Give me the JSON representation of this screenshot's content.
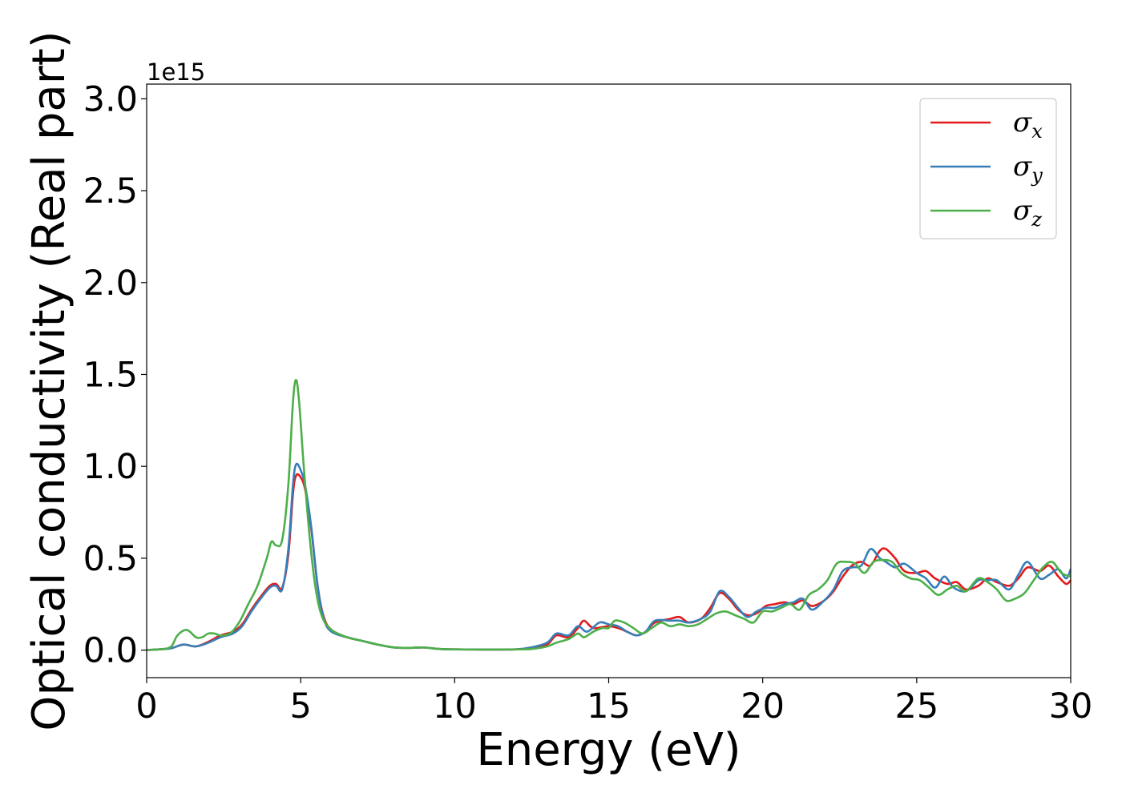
{
  "chart_data": {
    "type": "line",
    "xlabel": "Energy (eV)",
    "ylabel": "Optical conductivity (Real part)",
    "y_offset_label": "1e15",
    "xlim": [
      0,
      30
    ],
    "ylim": [
      -0.15,
      3.08
    ],
    "x_ticks": [
      0,
      5,
      10,
      15,
      20,
      25,
      30
    ],
    "x_tick_labels": [
      "0",
      "5",
      "10",
      "15",
      "20",
      "25",
      "30"
    ],
    "y_ticks": [
      0.0,
      0.5,
      1.0,
      1.5,
      2.0,
      2.5,
      3.0
    ],
    "y_tick_labels": [
      "0.0",
      "0.5",
      "1.0",
      "1.5",
      "2.0",
      "2.5",
      "3.0"
    ],
    "grid": false,
    "legend_position": "top-right",
    "series": [
      {
        "name": "σx",
        "legend_symbol": "σ",
        "legend_sub": "x",
        "color": "#e41a1c",
        "points": [
          [
            0,
            0
          ],
          [
            0.5,
            0.005
          ],
          [
            0.8,
            0.01
          ],
          [
            1.2,
            0.03
          ],
          [
            1.6,
            0.02
          ],
          [
            2.0,
            0.045
          ],
          [
            2.4,
            0.08
          ],
          [
            2.8,
            0.1
          ],
          [
            3.1,
            0.14
          ],
          [
            3.4,
            0.22
          ],
          [
            3.7,
            0.29
          ],
          [
            4.0,
            0.35
          ],
          [
            4.2,
            0.36
          ],
          [
            4.4,
            0.34
          ],
          [
            4.6,
            0.52
          ],
          [
            4.75,
            0.85
          ],
          [
            4.85,
            0.95
          ],
          [
            5.0,
            0.94
          ],
          [
            5.15,
            0.87
          ],
          [
            5.35,
            0.65
          ],
          [
            5.55,
            0.35
          ],
          [
            5.75,
            0.18
          ],
          [
            6.0,
            0.11
          ],
          [
            6.5,
            0.07
          ],
          [
            7.0,
            0.05
          ],
          [
            7.5,
            0.03
          ],
          [
            8.0,
            0.015
          ],
          [
            8.5,
            0.012
          ],
          [
            9.0,
            0.014
          ],
          [
            9.5,
            0.006
          ],
          [
            10,
            0.004
          ],
          [
            11,
            0.003
          ],
          [
            12,
            0.004
          ],
          [
            12.5,
            0.01
          ],
          [
            13.0,
            0.03
          ],
          [
            13.3,
            0.08
          ],
          [
            13.7,
            0.07
          ],
          [
            14.0,
            0.12
          ],
          [
            14.2,
            0.16
          ],
          [
            14.5,
            0.12
          ],
          [
            15.0,
            0.13
          ],
          [
            15.3,
            0.12
          ],
          [
            15.6,
            0.1
          ],
          [
            15.9,
            0.08
          ],
          [
            16.2,
            0.1
          ],
          [
            16.5,
            0.15
          ],
          [
            17.0,
            0.17
          ],
          [
            17.3,
            0.18
          ],
          [
            17.6,
            0.15
          ],
          [
            18.0,
            0.17
          ],
          [
            18.3,
            0.23
          ],
          [
            18.6,
            0.31
          ],
          [
            18.9,
            0.28
          ],
          [
            19.2,
            0.22
          ],
          [
            19.5,
            0.19
          ],
          [
            19.8,
            0.2
          ],
          [
            20.1,
            0.24
          ],
          [
            20.4,
            0.25
          ],
          [
            20.7,
            0.26
          ],
          [
            21.0,
            0.25
          ],
          [
            21.3,
            0.27
          ],
          [
            21.6,
            0.24
          ],
          [
            22.0,
            0.27
          ],
          [
            22.3,
            0.32
          ],
          [
            22.6,
            0.4
          ],
          [
            22.9,
            0.46
          ],
          [
            23.2,
            0.48
          ],
          [
            23.5,
            0.46
          ],
          [
            23.8,
            0.54
          ],
          [
            24.0,
            0.55
          ],
          [
            24.3,
            0.5
          ],
          [
            24.6,
            0.43
          ],
          [
            25.0,
            0.42
          ],
          [
            25.3,
            0.43
          ],
          [
            25.6,
            0.39
          ],
          [
            26.0,
            0.36
          ],
          [
            26.3,
            0.37
          ],
          [
            26.6,
            0.33
          ],
          [
            27.0,
            0.35
          ],
          [
            27.3,
            0.39
          ],
          [
            27.6,
            0.37
          ],
          [
            28.0,
            0.35
          ],
          [
            28.3,
            0.39
          ],
          [
            28.6,
            0.45
          ],
          [
            29.0,
            0.43
          ],
          [
            29.3,
            0.46
          ],
          [
            29.6,
            0.4
          ],
          [
            29.85,
            0.36
          ],
          [
            30,
            0.38
          ]
        ]
      },
      {
        "name": "σy",
        "legend_symbol": "σ",
        "legend_sub": "y",
        "color": "#377eb8",
        "points": [
          [
            0,
            0
          ],
          [
            0.5,
            0.005
          ],
          [
            0.8,
            0.01
          ],
          [
            1.2,
            0.03
          ],
          [
            1.6,
            0.02
          ],
          [
            2.0,
            0.04
          ],
          [
            2.4,
            0.07
          ],
          [
            2.8,
            0.09
          ],
          [
            3.1,
            0.13
          ],
          [
            3.4,
            0.21
          ],
          [
            3.7,
            0.28
          ],
          [
            4.0,
            0.34
          ],
          [
            4.2,
            0.35
          ],
          [
            4.4,
            0.33
          ],
          [
            4.6,
            0.55
          ],
          [
            4.75,
            0.9
          ],
          [
            4.85,
            1.01
          ],
          [
            5.0,
            0.98
          ],
          [
            5.15,
            0.89
          ],
          [
            5.35,
            0.66
          ],
          [
            5.55,
            0.35
          ],
          [
            5.75,
            0.17
          ],
          [
            6.0,
            0.1
          ],
          [
            6.5,
            0.07
          ],
          [
            7.0,
            0.05
          ],
          [
            7.5,
            0.03
          ],
          [
            8.0,
            0.015
          ],
          [
            8.5,
            0.012
          ],
          [
            9.0,
            0.014
          ],
          [
            9.5,
            0.006
          ],
          [
            10,
            0.004
          ],
          [
            11,
            0.003
          ],
          [
            12,
            0.004
          ],
          [
            12.5,
            0.015
          ],
          [
            13.0,
            0.04
          ],
          [
            13.3,
            0.09
          ],
          [
            13.7,
            0.08
          ],
          [
            14.0,
            0.13
          ],
          [
            14.3,
            0.1
          ],
          [
            14.7,
            0.15
          ],
          [
            15.0,
            0.14
          ],
          [
            15.3,
            0.13
          ],
          [
            15.6,
            0.1
          ],
          [
            15.9,
            0.08
          ],
          [
            16.2,
            0.1
          ],
          [
            16.5,
            0.16
          ],
          [
            17.0,
            0.16
          ],
          [
            17.3,
            0.16
          ],
          [
            17.6,
            0.15
          ],
          [
            18.0,
            0.17
          ],
          [
            18.3,
            0.21
          ],
          [
            18.6,
            0.32
          ],
          [
            18.9,
            0.29
          ],
          [
            19.2,
            0.23
          ],
          [
            19.5,
            0.18
          ],
          [
            19.8,
            0.21
          ],
          [
            20.1,
            0.23
          ],
          [
            20.4,
            0.23
          ],
          [
            20.7,
            0.25
          ],
          [
            21.0,
            0.26
          ],
          [
            21.3,
            0.28
          ],
          [
            21.6,
            0.22
          ],
          [
            22.0,
            0.27
          ],
          [
            22.3,
            0.33
          ],
          [
            22.6,
            0.43
          ],
          [
            22.9,
            0.45
          ],
          [
            23.2,
            0.46
          ],
          [
            23.5,
            0.55
          ],
          [
            23.8,
            0.5
          ],
          [
            24.0,
            0.48
          ],
          [
            24.3,
            0.45
          ],
          [
            24.6,
            0.47
          ],
          [
            25.0,
            0.42
          ],
          [
            25.3,
            0.39
          ],
          [
            25.6,
            0.34
          ],
          [
            25.9,
            0.4
          ],
          [
            26.2,
            0.34
          ],
          [
            26.6,
            0.32
          ],
          [
            27.0,
            0.38
          ],
          [
            27.3,
            0.38
          ],
          [
            27.6,
            0.38
          ],
          [
            28.0,
            0.33
          ],
          [
            28.3,
            0.41
          ],
          [
            28.6,
            0.48
          ],
          [
            29.0,
            0.39
          ],
          [
            29.3,
            0.41
          ],
          [
            29.6,
            0.44
          ],
          [
            29.85,
            0.39
          ],
          [
            30,
            0.44
          ]
        ]
      },
      {
        "name": "σz",
        "legend_symbol": "σ",
        "legend_sub": "z",
        "color": "#4daf4a",
        "points": [
          [
            0,
            0
          ],
          [
            0.5,
            0.005
          ],
          [
            0.8,
            0.02
          ],
          [
            1.0,
            0.08
          ],
          [
            1.3,
            0.11
          ],
          [
            1.6,
            0.07
          ],
          [
            1.8,
            0.07
          ],
          [
            2.0,
            0.09
          ],
          [
            2.2,
            0.09
          ],
          [
            2.4,
            0.08
          ],
          [
            2.7,
            0.09
          ],
          [
            3.0,
            0.15
          ],
          [
            3.3,
            0.25
          ],
          [
            3.6,
            0.35
          ],
          [
            3.9,
            0.5
          ],
          [
            4.05,
            0.59
          ],
          [
            4.2,
            0.57
          ],
          [
            4.4,
            0.6
          ],
          [
            4.6,
            0.9
          ],
          [
            4.75,
            1.35
          ],
          [
            4.85,
            1.47
          ],
          [
            4.95,
            1.35
          ],
          [
            5.1,
            1.0
          ],
          [
            5.3,
            0.6
          ],
          [
            5.5,
            0.32
          ],
          [
            5.7,
            0.18
          ],
          [
            6.0,
            0.11
          ],
          [
            6.5,
            0.07
          ],
          [
            7.0,
            0.05
          ],
          [
            7.5,
            0.03
          ],
          [
            8.0,
            0.015
          ],
          [
            8.5,
            0.012
          ],
          [
            9.0,
            0.014
          ],
          [
            9.5,
            0.006
          ],
          [
            10,
            0.004
          ],
          [
            11,
            0.003
          ],
          [
            12,
            0.004
          ],
          [
            12.5,
            0.006
          ],
          [
            13.0,
            0.02
          ],
          [
            13.3,
            0.04
          ],
          [
            13.7,
            0.06
          ],
          [
            14.0,
            0.09
          ],
          [
            14.2,
            0.07
          ],
          [
            14.5,
            0.1
          ],
          [
            14.8,
            0.12
          ],
          [
            15.0,
            0.12
          ],
          [
            15.2,
            0.16
          ],
          [
            15.5,
            0.15
          ],
          [
            15.8,
            0.12
          ],
          [
            16.1,
            0.09
          ],
          [
            16.4,
            0.12
          ],
          [
            16.7,
            0.15
          ],
          [
            17.0,
            0.13
          ],
          [
            17.3,
            0.14
          ],
          [
            17.6,
            0.13
          ],
          [
            17.9,
            0.14
          ],
          [
            18.2,
            0.17
          ],
          [
            18.5,
            0.2
          ],
          [
            18.8,
            0.21
          ],
          [
            19.1,
            0.19
          ],
          [
            19.4,
            0.17
          ],
          [
            19.7,
            0.15
          ],
          [
            20.0,
            0.21
          ],
          [
            20.3,
            0.21
          ],
          [
            20.6,
            0.23
          ],
          [
            20.9,
            0.25
          ],
          [
            21.2,
            0.22
          ],
          [
            21.5,
            0.3
          ],
          [
            21.8,
            0.33
          ],
          [
            22.1,
            0.38
          ],
          [
            22.4,
            0.47
          ],
          [
            22.7,
            0.48
          ],
          [
            23.0,
            0.47
          ],
          [
            23.3,
            0.42
          ],
          [
            23.6,
            0.48
          ],
          [
            23.9,
            0.49
          ],
          [
            24.2,
            0.48
          ],
          [
            24.5,
            0.42
          ],
          [
            24.8,
            0.39
          ],
          [
            25.1,
            0.38
          ],
          [
            25.4,
            0.34
          ],
          [
            25.7,
            0.3
          ],
          [
            26.0,
            0.33
          ],
          [
            26.3,
            0.35
          ],
          [
            26.6,
            0.32
          ],
          [
            27.0,
            0.39
          ],
          [
            27.3,
            0.37
          ],
          [
            27.6,
            0.33
          ],
          [
            27.9,
            0.27
          ],
          [
            28.2,
            0.28
          ],
          [
            28.5,
            0.31
          ],
          [
            28.8,
            0.38
          ],
          [
            29.1,
            0.45
          ],
          [
            29.4,
            0.48
          ],
          [
            29.7,
            0.42
          ],
          [
            30,
            0.4
          ]
        ]
      }
    ]
  }
}
